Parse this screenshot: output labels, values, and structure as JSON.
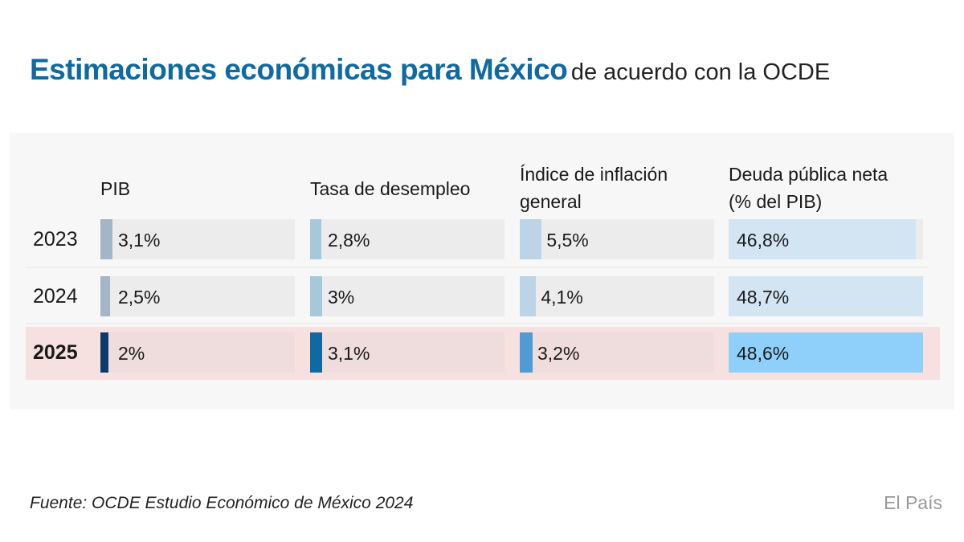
{
  "title": {
    "main": "Estimaciones económicas para México",
    "sub": "de acuerdo con la OCDE"
  },
  "chart_data": {
    "type": "table",
    "columns": [
      "PIB",
      "Tasa de desempleo",
      "Índice de inflación general",
      "Deuda pública neta (% del PIB)"
    ],
    "column_lines": [
      [
        "PIB"
      ],
      [
        "Tasa de desempleo"
      ],
      [
        "Índice de inflación",
        "general"
      ],
      [
        "Deuda pública neta",
        "(% del PIB)"
      ]
    ],
    "rows": [
      {
        "year": "2023",
        "values": [
          3.1,
          2.8,
          5.5,
          46.8
        ],
        "labels": [
          "3,1%",
          "2,8%",
          "5,5%",
          "46,8%"
        ]
      },
      {
        "year": "2024",
        "values": [
          2.5,
          3,
          4.1,
          48.7
        ],
        "labels": [
          "2,5%",
          "3%",
          "4,1%",
          "48,7%"
        ]
      },
      {
        "year": "2025",
        "values": [
          2,
          3.1,
          3.2,
          48.6
        ],
        "labels": [
          "2%",
          "3,1%",
          "3,2%",
          "48,6%"
        ],
        "highlighted": true
      }
    ],
    "scale_max": 48.7,
    "colors": {
      "past": [
        "#a3b5c6",
        "#a6c8da",
        "#bcd4e6",
        "#d3e5f3"
      ],
      "highlight": [
        "#0b3a6b",
        "#0e6aa0",
        "#4f9bd4",
        "#8fd0fb"
      ],
      "highlight_row_bg": "#f7e0e0"
    }
  },
  "source": "Fuente: OCDE Estudio Económico de México 2024",
  "brand": "El País"
}
